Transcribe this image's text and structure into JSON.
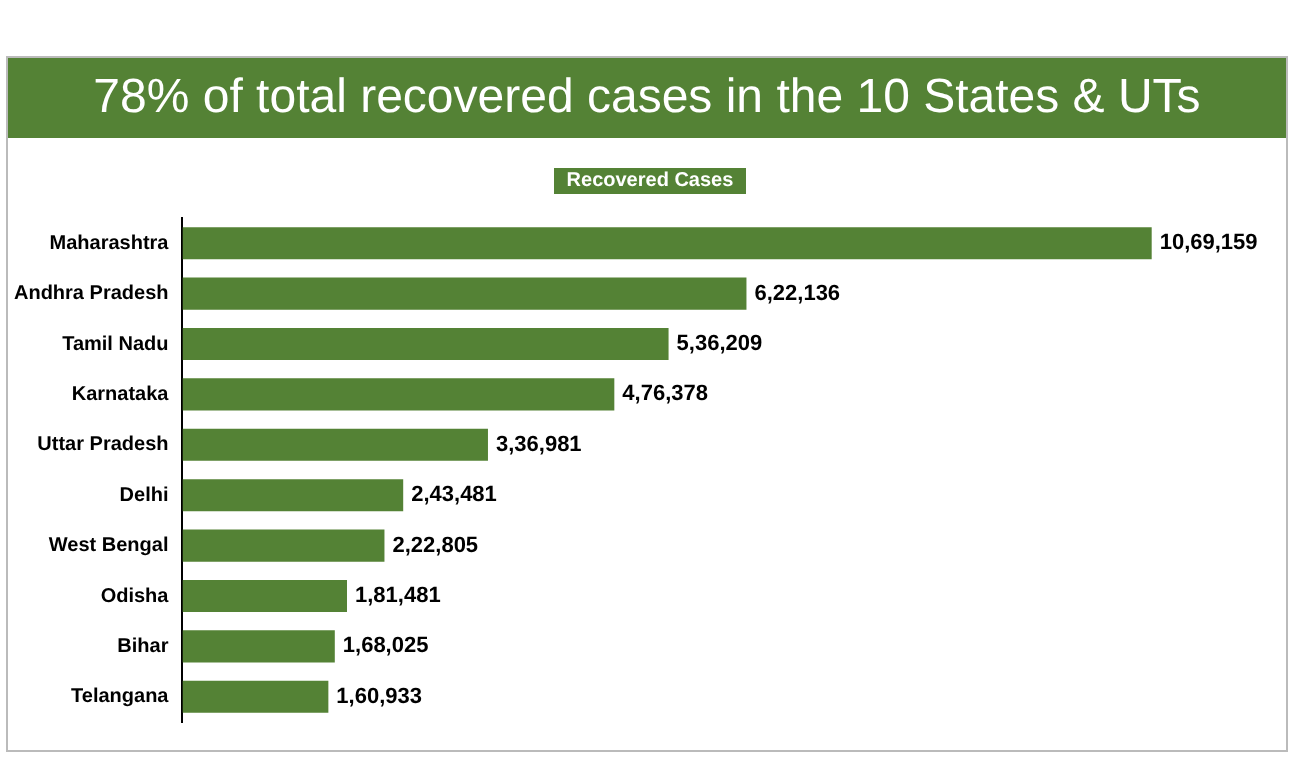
{
  "chart_data": {
    "type": "bar",
    "orientation": "horizontal",
    "title": "78% of total recovered cases in the 10 States & UTs",
    "categories": [
      "Maharashtra",
      "Andhra Pradesh",
      "Tamil Nadu",
      "Karnataka",
      "Uttar Pradesh",
      "Delhi",
      "West Bengal",
      "Odisha",
      "Bihar",
      "Telangana"
    ],
    "series": [
      {
        "name": "Recovered Cases",
        "color": "#548235",
        "values": [
          1069159,
          622136,
          536209,
          476378,
          336981,
          243481,
          222805,
          181481,
          168025,
          160933
        ],
        "value_labels": [
          "10,69,159",
          "6,22,136",
          "5,36,209",
          "4,76,378",
          "3,36,981",
          "2,43,481",
          "2,22,805",
          "1,81,481",
          "1,68,025",
          "1,60,933"
        ]
      }
    ],
    "legend": "top",
    "grid": false
  }
}
